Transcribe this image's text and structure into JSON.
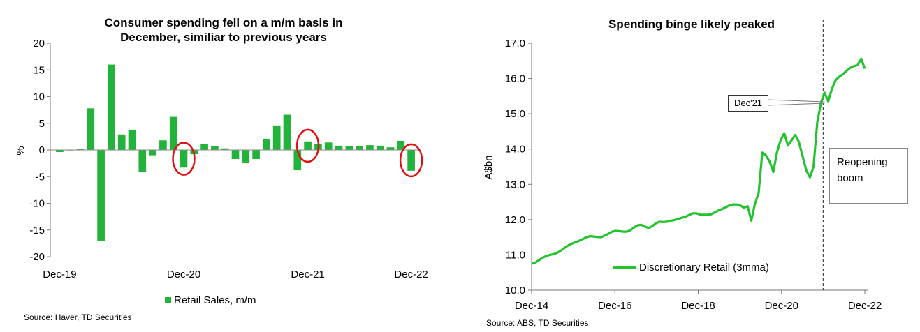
{
  "chart_data": [
    {
      "type": "bar",
      "title": "Consumer spending fell on a m/m basis in\nDecember, similiar to previous years",
      "ylabel": "%",
      "ylim": [
        -20,
        20
      ],
      "yticks": [
        20,
        15,
        10,
        5,
        0,
        -5,
        -10,
        -15,
        -20
      ],
      "xtick_labels": [
        "Dec-19",
        "Dec-20",
        "Dec-21",
        "Dec-22"
      ],
      "series": [
        {
          "name": "Retail Sales, m/m",
          "values": [
            -0.4,
            -0.1,
            0.2,
            7.8,
            -17.1,
            16.0,
            2.9,
            3.8,
            -4.1,
            -1.0,
            1.8,
            6.2,
            -3.3,
            -0.8,
            1.1,
            0.7,
            0.3,
            -1.7,
            -2.4,
            -1.7,
            2.0,
            4.6,
            6.6,
            -3.8,
            1.6,
            1.1,
            1.4,
            0.8,
            0.7,
            0.7,
            0.9,
            0.8,
            0.5,
            1.7,
            -3.9
          ]
        }
      ],
      "highlighted": [
        "Dec-20",
        "Dec-21",
        "Dec-22"
      ],
      "highlight_color": "#e01010",
      "bar_color": "#22b33a",
      "legend_position": "bottom",
      "source": "Source: Haver, TD Securities"
    },
    {
      "type": "line",
      "title": "Spending binge likely peaked",
      "ylabel": "A$bn",
      "ylim": [
        10.0,
        17.0
      ],
      "yticks": [
        "17.0",
        "16.0",
        "15.0",
        "14.0",
        "13.0",
        "12.0",
        "11.0",
        "10.0"
      ],
      "xtick_labels": [
        "Dec-14",
        "Dec-16",
        "Dec-18",
        "Dec-20",
        "Dec-22"
      ],
      "series": [
        {
          "name": "Discretionary Retail (3mma)",
          "values": [
            10.75,
            10.78,
            10.85,
            10.92,
            10.97,
            11.0,
            11.02,
            11.06,
            11.12,
            11.2,
            11.27,
            11.32,
            11.36,
            11.4,
            11.45,
            11.5,
            11.53,
            11.52,
            11.51,
            11.5,
            11.55,
            11.6,
            11.66,
            11.68,
            11.67,
            11.66,
            11.66,
            11.7,
            11.78,
            11.84,
            11.85,
            11.8,
            11.76,
            11.82,
            11.9,
            11.94,
            11.93,
            11.94,
            11.97,
            11.99,
            12.02,
            12.05,
            12.08,
            12.13,
            12.18,
            12.18,
            12.14,
            12.14,
            12.14,
            12.15,
            12.2,
            12.26,
            12.3,
            12.35,
            12.4,
            12.43,
            12.43,
            12.4,
            12.34,
            12.38,
            11.97,
            12.45,
            12.75,
            13.9,
            13.82,
            13.65,
            13.35,
            13.9,
            14.25,
            14.45,
            14.1,
            14.25,
            14.4,
            14.2,
            13.8,
            13.4,
            13.2,
            13.5,
            14.75,
            15.3,
            15.6,
            15.35,
            15.7,
            15.95,
            16.05,
            16.12,
            16.22,
            16.3,
            16.35,
            16.38,
            16.56,
            16.28
          ]
        }
      ],
      "line_color": "#22c32e",
      "vline_at": "Dec-21",
      "callouts": {
        "dec21": "Dec'21",
        "reopening": "Reopening\nboom"
      },
      "legend_position": "bottom-left",
      "source": "Source: ABS, TD Securities"
    }
  ]
}
